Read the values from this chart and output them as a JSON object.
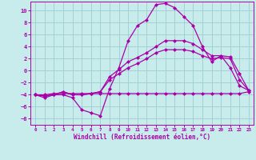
{
  "xlabel": "Windchill (Refroidissement éolien,°C)",
  "xlim": [
    -0.5,
    23.5
  ],
  "ylim": [
    -9,
    11.5
  ],
  "xticks": [
    0,
    1,
    2,
    3,
    4,
    5,
    6,
    7,
    8,
    9,
    10,
    11,
    12,
    13,
    14,
    15,
    16,
    17,
    18,
    19,
    20,
    21,
    22,
    23
  ],
  "yticks": [
    -8,
    -6,
    -4,
    -2,
    0,
    2,
    4,
    6,
    8,
    10
  ],
  "bg_color": "#c8ecec",
  "line_color": "#aa00aa",
  "grid_color": "#9ecece",
  "hours": [
    0,
    1,
    2,
    3,
    4,
    5,
    6,
    7,
    8,
    9,
    10,
    11,
    12,
    13,
    14,
    15,
    16,
    17,
    18,
    19,
    20,
    21,
    22,
    23
  ],
  "curve_main": [
    -4,
    -4.5,
    -4,
    -4,
    -4.5,
    -6.5,
    -7,
    -7.5,
    -3,
    0.5,
    5,
    7.5,
    8.5,
    11.0,
    11.2,
    10.5,
    9,
    7.5,
    4,
    1.5,
    2.5,
    0.5,
    -2.5,
    -3.3
  ],
  "curve_flat": [
    -4,
    -4,
    -3.8,
    -3.8,
    -3.8,
    -3.8,
    -3.8,
    -3.8,
    -3.8,
    -3.8,
    -3.8,
    -3.8,
    -3.8,
    -3.8,
    -3.8,
    -3.8,
    -3.8,
    -3.8,
    -3.8,
    -3.8,
    -3.8,
    -3.8,
    -3.8,
    -3.5
  ],
  "curve_mid1": [
    -4,
    -4.2,
    -4,
    -3.5,
    -4,
    -4,
    -3.8,
    -3.5,
    -1.5,
    -0.5,
    0.5,
    1.2,
    2,
    3,
    3.5,
    3.5,
    3.5,
    3.2,
    2.5,
    2,
    2.2,
    2.0,
    -1.5,
    -3.3
  ],
  "curve_mid2": [
    -4,
    -4.2,
    -4,
    -3.5,
    -4,
    -4,
    -3.8,
    -3.5,
    -1,
    0.2,
    1.5,
    2.2,
    3,
    4,
    5,
    5,
    5,
    4.5,
    3.5,
    2.5,
    2.5,
    2.3,
    -0.5,
    -3.3
  ],
  "markersize": 2.5,
  "linewidth": 0.9
}
